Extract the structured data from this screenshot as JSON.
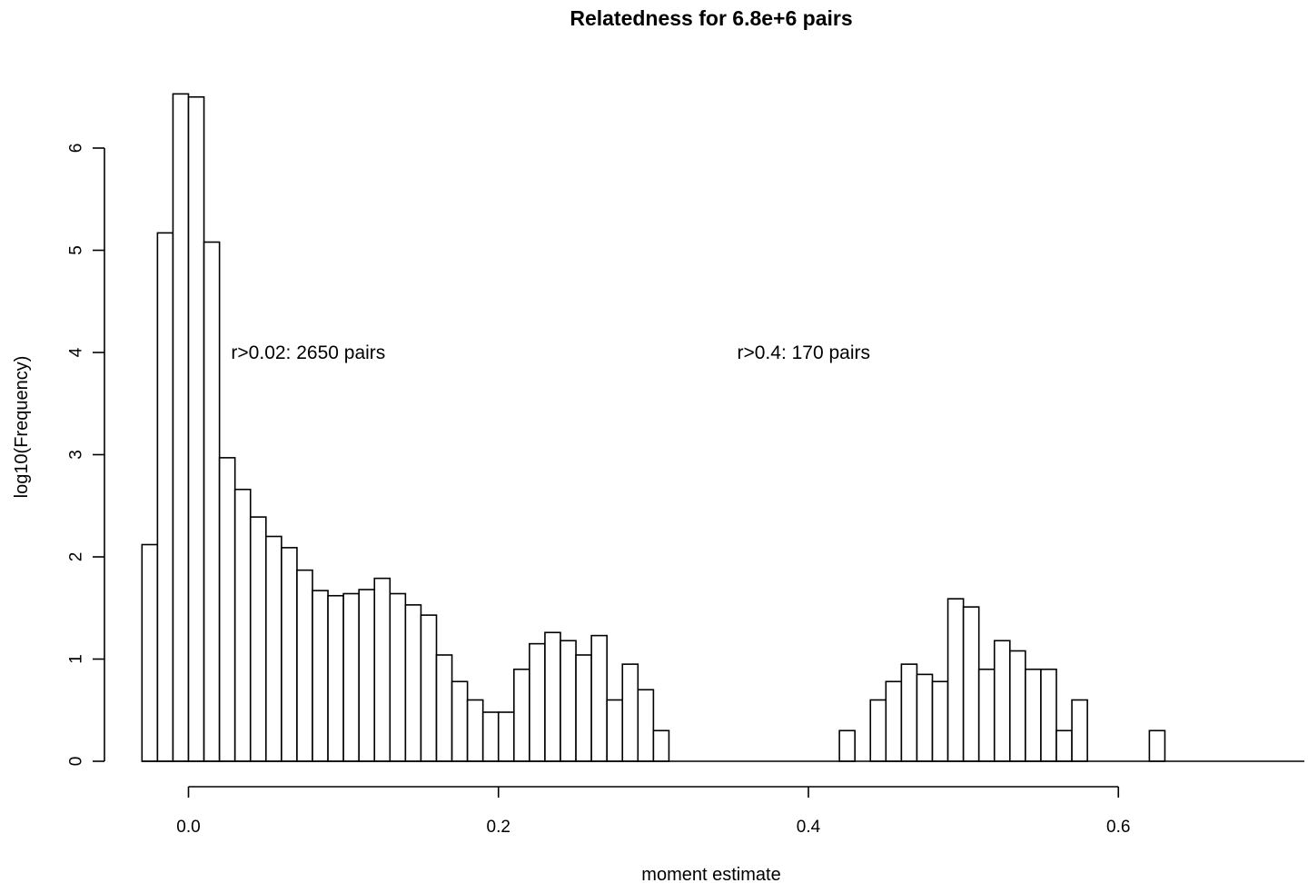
{
  "chart_data": {
    "type": "bar",
    "title": "Relatedness for 6.8e+6 pairs",
    "xlabel": "moment estimate",
    "ylabel": "log10(Frequency)",
    "bin_width": 0.01,
    "bin_start": -0.03,
    "values": [
      2.12,
      5.17,
      6.53,
      6.5,
      5.08,
      2.97,
      2.66,
      2.39,
      2.2,
      2.09,
      1.87,
      1.67,
      1.62,
      1.64,
      1.68,
      1.79,
      1.64,
      1.53,
      1.43,
      1.04,
      0.78,
      0.6,
      0.48,
      0.48,
      0.9,
      1.15,
      1.26,
      1.18,
      1.04,
      1.23,
      0.6,
      0.95,
      0.7,
      0.3,
      0,
      0,
      0,
      0,
      0,
      0,
      0,
      0,
      0,
      0,
      0,
      0.3,
      0,
      0.6,
      0.78,
      0.95,
      0.85,
      0.78,
      1.59,
      1.51,
      0.9,
      1.18,
      1.08,
      0.9,
      0.9,
      0.3,
      0.6,
      0,
      0,
      0,
      0,
      0.3
    ],
    "xlim": [
      -0.03,
      0.72
    ],
    "ylim": [
      0,
      6.53
    ],
    "x_ticks": [
      0.0,
      0.2,
      0.4,
      0.6
    ],
    "x_tick_labels": [
      "0.0",
      "0.2",
      "0.4",
      "0.6"
    ],
    "y_ticks": [
      0,
      1,
      2,
      3,
      4,
      5,
      6
    ],
    "y_tick_labels": [
      "0",
      "1",
      "2",
      "3",
      "4",
      "5",
      "6"
    ],
    "annotations": [
      {
        "text": "r>0.02: 2650 pairs",
        "x": 0.0275,
        "y": 4.0
      },
      {
        "text": "r>0.4: 170 pairs",
        "x": 0.354,
        "y": 4.0
      }
    ],
    "grid": false,
    "legend": "none",
    "colors": {
      "bar_fill": "#ffffff",
      "bar_stroke": "#000000"
    }
  }
}
